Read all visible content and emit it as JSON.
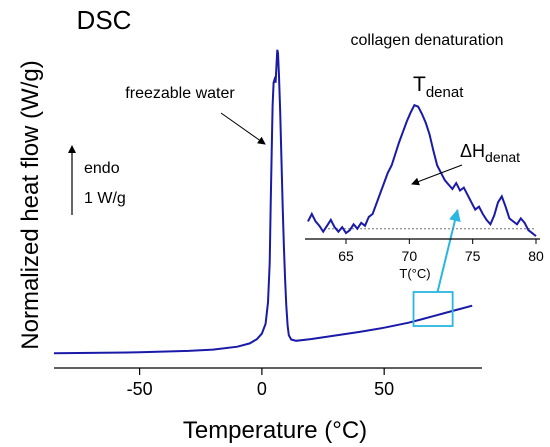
{
  "chart_data": [
    {
      "type": "line",
      "title": "DSC",
      "xlabel": "Temperature (°C)",
      "ylabel": "Normalized heat flow (W/g)",
      "xlim": [
        -85,
        90
      ],
      "ylim": [
        0,
        1
      ],
      "xticks": [
        -50,
        0,
        50
      ],
      "x_tick_labels": [
        "-50",
        "0",
        "50"
      ],
      "yticks": [],
      "grid": false,
      "series": [
        {
          "color": "#1a1aa8",
          "points": [
            [
              -85,
              0.045
            ],
            [
              -70,
              0.046
            ],
            [
              -50,
              0.048
            ],
            [
              -30,
              0.052
            ],
            [
              -20,
              0.056
            ],
            [
              -10,
              0.065
            ],
            [
              -5,
              0.075
            ],
            [
              -2,
              0.088
            ],
            [
              0,
              0.105
            ],
            [
              1.5,
              0.135
            ],
            [
              2.5,
              0.2
            ],
            [
              3.2,
              0.32
            ],
            [
              3.6,
              0.5
            ],
            [
              4.0,
              0.66
            ],
            [
              4.4,
              0.8
            ],
            [
              4.8,
              0.87
            ],
            [
              5.2,
              0.88
            ],
            [
              5.6,
              0.87
            ],
            [
              6.0,
              0.93
            ],
            [
              6.3,
              0.97
            ],
            [
              6.6,
              0.96
            ],
            [
              7.0,
              0.89
            ],
            [
              7.5,
              0.78
            ],
            [
              8.0,
              0.63
            ],
            [
              8.5,
              0.49
            ],
            [
              9.0,
              0.37
            ],
            [
              9.5,
              0.27
            ],
            [
              10.0,
              0.19
            ],
            [
              10.5,
              0.13
            ],
            [
              11.0,
              0.1
            ],
            [
              12.0,
              0.087
            ],
            [
              14.0,
              0.083
            ],
            [
              20,
              0.088
            ],
            [
              30,
              0.099
            ],
            [
              40,
              0.11
            ],
            [
              50,
              0.123
            ],
            [
              60,
              0.138
            ],
            [
              65,
              0.148
            ],
            [
              70,
              0.158
            ],
            [
              75,
              0.168
            ],
            [
              80,
              0.178
            ],
            [
              86,
              0.19
            ]
          ]
        }
      ],
      "annotations": [
        {
          "text": "freezable water",
          "x": 5,
          "y": 0.72
        },
        {
          "text": "endo",
          "units": "1 W/g"
        }
      ],
      "highlight_range": {
        "x": [
          62,
          78
        ]
      }
    },
    {
      "type": "line",
      "title": "collagen denaturation",
      "title_label": "collagen denaturation",
      "xlabel": "T(°C)",
      "ylabel": "",
      "xlim": [
        62,
        80
      ],
      "ylim": [
        0,
        1
      ],
      "xticks": [
        65,
        70,
        75,
        80
      ],
      "x_tick_labels": [
        "65",
        "70",
        "75",
        "80"
      ],
      "yticks": [],
      "grid": false,
      "baseline_y": 0.07,
      "series": [
        {
          "color": "#1a1aa8",
          "points": [
            [
              62.0,
              0.12
            ],
            [
              62.3,
              0.17
            ],
            [
              62.6,
              0.12
            ],
            [
              62.9,
              0.09
            ],
            [
              63.2,
              0.05
            ],
            [
              63.5,
              0.09
            ],
            [
              63.8,
              0.13
            ],
            [
              64.1,
              0.08
            ],
            [
              64.4,
              0.05
            ],
            [
              64.7,
              0.08
            ],
            [
              65.0,
              0.04
            ],
            [
              65.3,
              0.06
            ],
            [
              65.6,
              0.1
            ],
            [
              65.9,
              0.07
            ],
            [
              66.2,
              0.11
            ],
            [
              66.5,
              0.09
            ],
            [
              66.8,
              0.15
            ],
            [
              67.1,
              0.17
            ],
            [
              67.4,
              0.24
            ],
            [
              67.7,
              0.31
            ],
            [
              68.0,
              0.38
            ],
            [
              68.3,
              0.45
            ],
            [
              68.6,
              0.5
            ],
            [
              68.9,
              0.58
            ],
            [
              69.2,
              0.66
            ],
            [
              69.5,
              0.73
            ],
            [
              69.8,
              0.8
            ],
            [
              70.1,
              0.86
            ],
            [
              70.4,
              0.91
            ],
            [
              70.7,
              0.9
            ],
            [
              71.0,
              0.85
            ],
            [
              71.3,
              0.79
            ],
            [
              71.6,
              0.71
            ],
            [
              71.9,
              0.6
            ],
            [
              72.2,
              0.5
            ],
            [
              72.5,
              0.45
            ],
            [
              72.8,
              0.4
            ],
            [
              73.1,
              0.37
            ],
            [
              73.4,
              0.34
            ],
            [
              73.7,
              0.38
            ],
            [
              74.0,
              0.33
            ],
            [
              74.3,
              0.35
            ],
            [
              74.6,
              0.3
            ],
            [
              74.9,
              0.25
            ],
            [
              75.2,
              0.2
            ],
            [
              75.5,
              0.22
            ],
            [
              75.8,
              0.17
            ],
            [
              76.1,
              0.13
            ],
            [
              76.4,
              0.1
            ],
            [
              76.7,
              0.16
            ],
            [
              77.0,
              0.25
            ],
            [
              77.3,
              0.29
            ],
            [
              77.6,
              0.22
            ],
            [
              77.9,
              0.14
            ],
            [
              78.2,
              0.12
            ],
            [
              78.5,
              0.1
            ],
            [
              78.8,
              0.14
            ],
            [
              79.1,
              0.11
            ],
            [
              79.4,
              0.06
            ],
            [
              79.7,
              0.04
            ],
            [
              80.0,
              0.02
            ]
          ]
        }
      ],
      "annotations": [
        {
          "text": "T",
          "subscript": "denat",
          "x": 70.4
        },
        {
          "text": "ΔH",
          "subscript": "denat"
        }
      ]
    }
  ],
  "colors": {
    "curve": "#1a1aa8",
    "highlight": "#29b6e0",
    "text": "#000000"
  }
}
